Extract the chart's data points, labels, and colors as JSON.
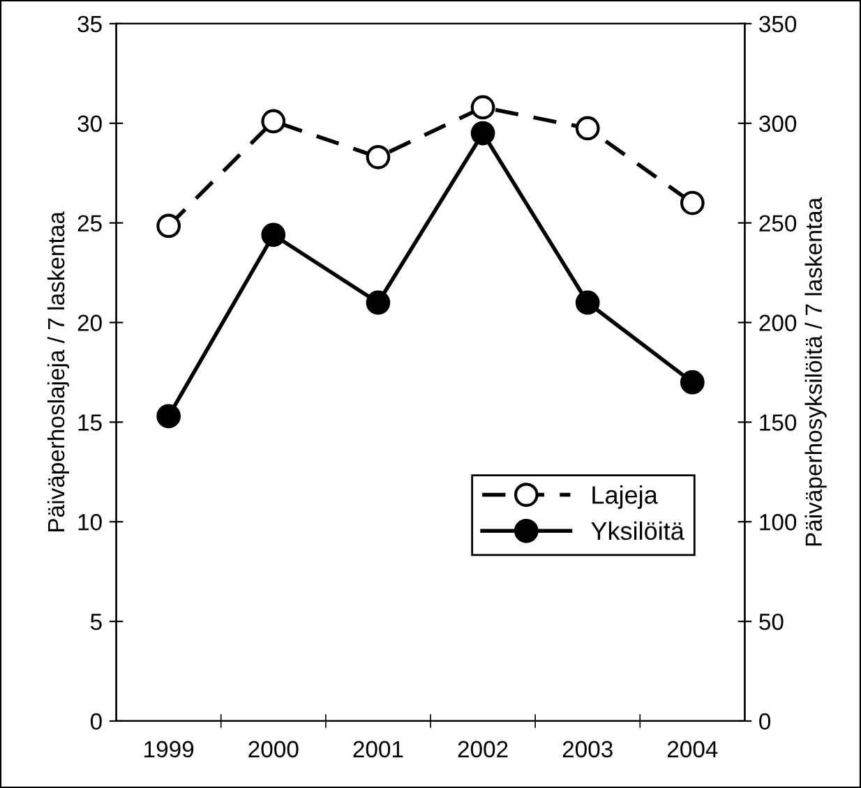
{
  "chart_data": {
    "type": "line",
    "categories": [
      "1999",
      "2000",
      "2001",
      "2002",
      "2003",
      "2004"
    ],
    "ylabel": "Päiväperhoslajeja / 7 laskentaa",
    "y2label": "Päiväperhosyksilöitä / 7 laskentaa",
    "ylim": [
      0,
      35
    ],
    "yticks": [
      0,
      5,
      10,
      15,
      20,
      25,
      30,
      35
    ],
    "y2lim": [
      0,
      350
    ],
    "y2ticks": [
      0,
      50,
      100,
      150,
      200,
      250,
      300,
      350
    ],
    "series": [
      {
        "name": "Lajeja",
        "color": "#000000",
        "values": [
          24.85,
          30.1,
          28.3,
          30.8,
          29.75,
          26.0
        ],
        "marker": "circle",
        "line_style": "dashed"
      },
      {
        "name": "Yksilöitä",
        "color": "#000000",
        "values": [
          153,
          244,
          210,
          295,
          210,
          170
        ],
        "marker": "circle",
        "line_style": "solid",
        "axis": "y2"
      }
    ],
    "legend": "bottom right",
    "grid": false
  }
}
